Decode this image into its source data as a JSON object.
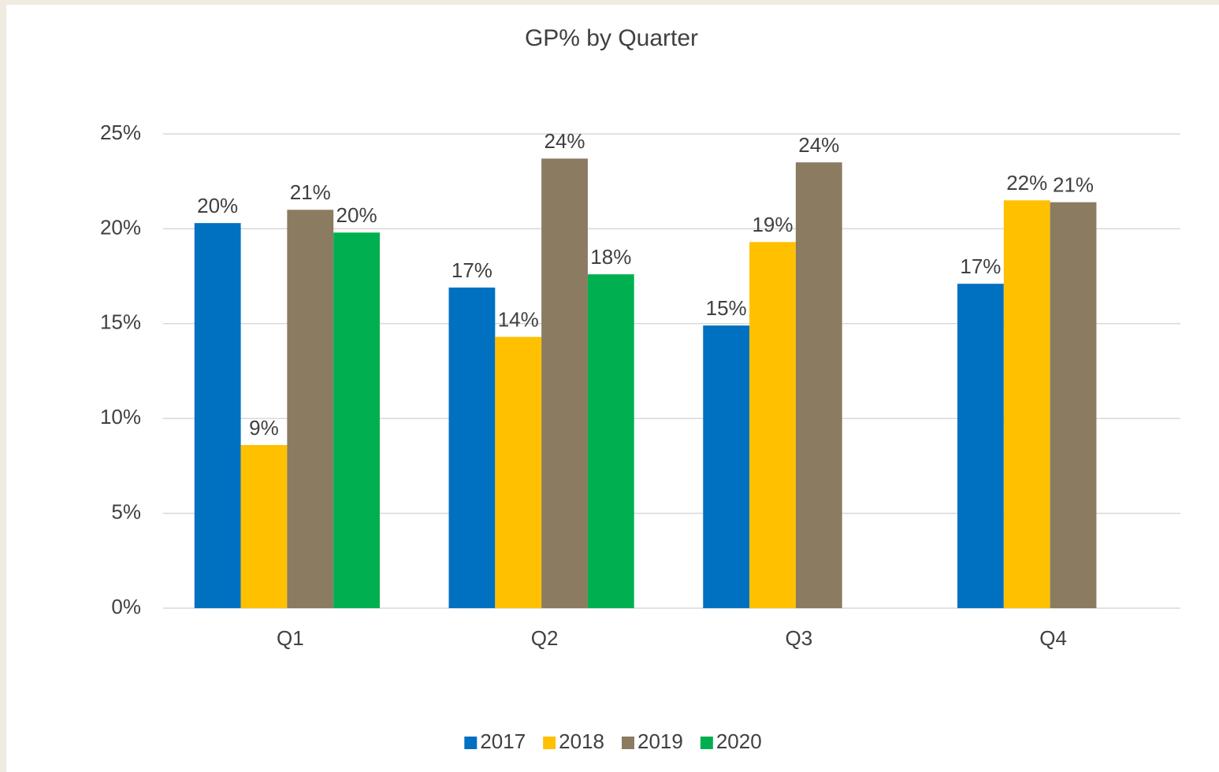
{
  "chart_data": {
    "type": "bar",
    "title": "GP% by Quarter",
    "categories": [
      "Q1",
      "Q2",
      "Q3",
      "Q4"
    ],
    "series": [
      {
        "name": "2017",
        "color": "#0070c0",
        "values": [
          20.3,
          16.9,
          14.9,
          17.1
        ],
        "value_labels": [
          "20%",
          "17%",
          "15%",
          "17%"
        ]
      },
      {
        "name": "2018",
        "color": "#ffc000",
        "values": [
          8.6,
          14.3,
          19.3,
          21.5
        ],
        "value_labels": [
          "9%",
          "14%",
          "19%",
          "22%"
        ]
      },
      {
        "name": "2019",
        "color": "#8b7b61",
        "values": [
          21.0,
          23.7,
          23.5,
          21.4
        ],
        "value_labels": [
          "21%",
          "24%",
          "24%",
          "21%"
        ]
      },
      {
        "name": "2020",
        "color": "#00b050",
        "values": [
          19.8,
          17.6,
          null,
          null
        ],
        "value_labels": [
          "20%",
          "18%",
          null,
          null
        ]
      }
    ],
    "ylim": [
      0,
      25
    ],
    "yticks": [
      {
        "value": 0,
        "label": "0%"
      },
      {
        "value": 5,
        "label": "5%"
      },
      {
        "value": 10,
        "label": "10%"
      },
      {
        "value": 15,
        "label": "15%"
      },
      {
        "value": 20,
        "label": "20%"
      },
      {
        "value": 25,
        "label": "25%"
      }
    ],
    "grid": true,
    "legend": "bottom"
  }
}
